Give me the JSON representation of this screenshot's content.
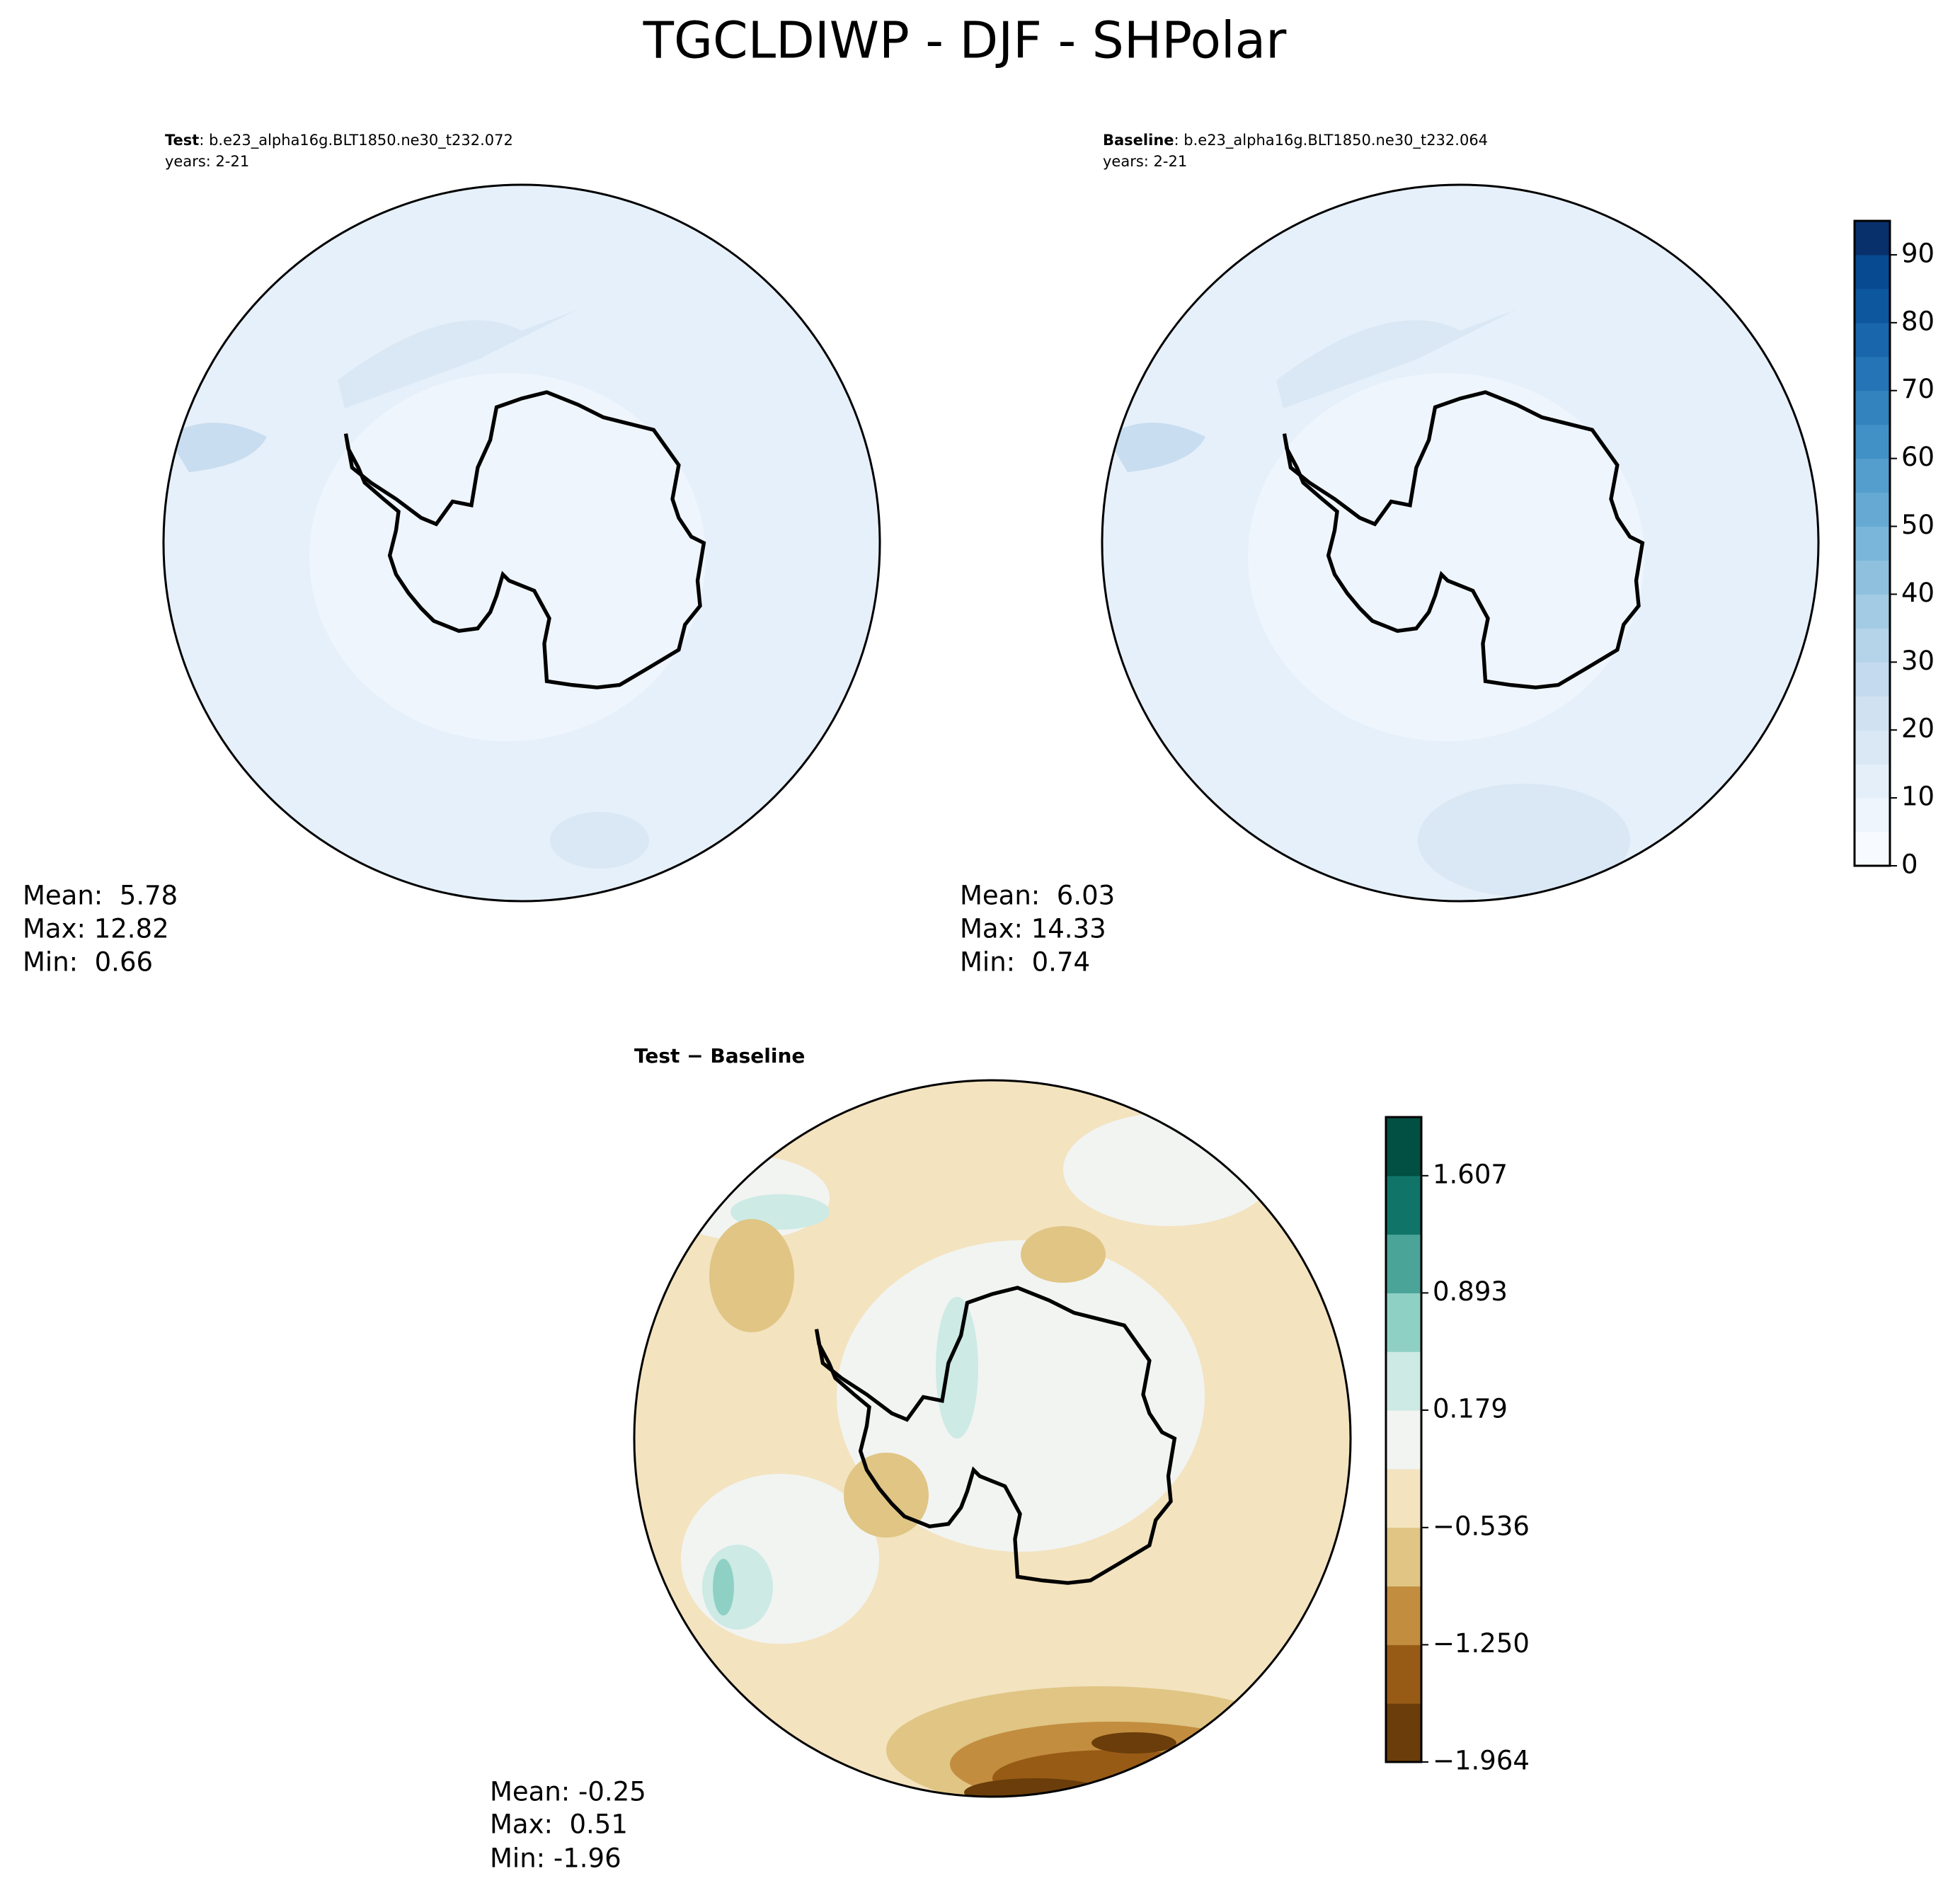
{
  "title": "TGCLDIWP - DJF - SHPolar",
  "panels": [
    {
      "label": "Test",
      "case": ": b.e23_alpha16g.BLT1850.ne30_t232.072",
      "years": "years: 2-21",
      "stats": [
        "Mean:  5.78",
        "Max: 12.82",
        "Min:  0.66"
      ]
    },
    {
      "label": "Baseline",
      "case": ": b.e23_alpha16g.BLT1850.ne30_t232.064",
      "years": "years: 2-21",
      "stats": [
        "Mean:  6.03",
        "Max: 14.33",
        "Min:  0.74"
      ]
    },
    {
      "title": "Test − Baseline",
      "stats": [
        "Mean: -0.25",
        "Max:  0.51",
        "Min: -1.96"
      ]
    }
  ],
  "chart_data": [
    {
      "type": "colorbar",
      "ylim": [
        0,
        95
      ],
      "yticks": [
        0,
        10,
        20,
        30,
        40,
        50,
        60,
        70,
        80,
        90
      ],
      "colors": [
        "#f7fbff",
        "#eef5fc",
        "#e4eff9",
        "#dae8f5",
        "#d0e1f2",
        "#c4daee",
        "#b5d4e9",
        "#a3cbe3",
        "#8fc1de",
        "#7ab6d9",
        "#66aad4",
        "#549ecd",
        "#4191c6",
        "#3383be",
        "#2474b6",
        "#1966ac",
        "#0d579f",
        "#084a91",
        "#08306b"
      ]
    },
    {
      "type": "colorbar",
      "ylim": [
        -1.964,
        1.964
      ],
      "yticks": [
        {
          "value": -1.964,
          "label": "−1.964"
        },
        {
          "value": -1.25,
          "label": "−1.250"
        },
        {
          "value": -0.536,
          "label": "−0.536"
        },
        0.179,
        0.893,
        1.607
      ],
      "colors": [
        "#6a3d0a",
        "#975b16",
        "#c38d3f",
        "#e0c584",
        "#f3e3bf",
        "#f2f4f2",
        "#cdeae5",
        "#8fd0c5",
        "#4aa598",
        "#117469",
        "#024f43"
      ]
    }
  ]
}
